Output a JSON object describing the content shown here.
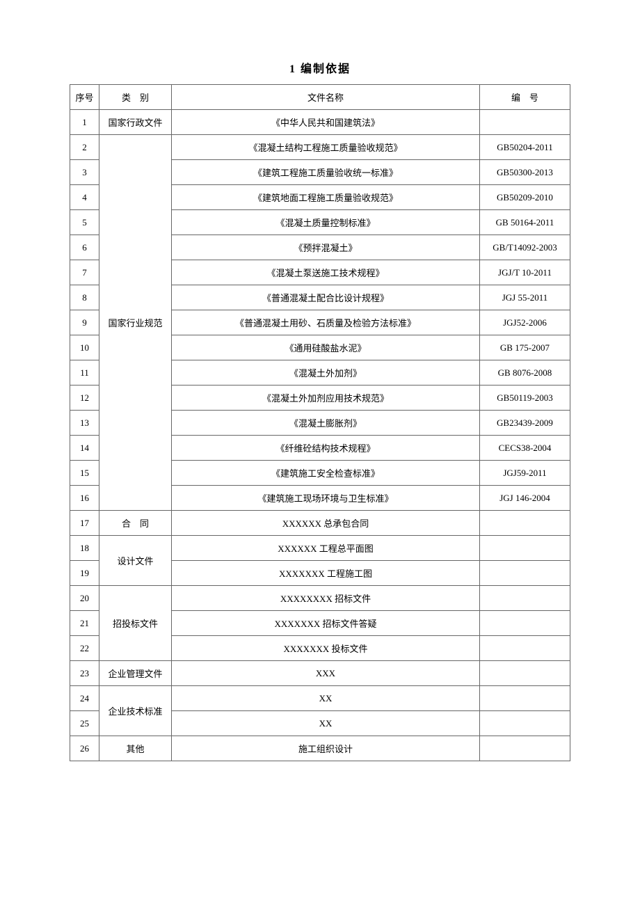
{
  "title": "1 编制依据",
  "headers": {
    "seq": "序号",
    "category": "类　别",
    "filename": "文件名称",
    "code": "编　号"
  },
  "categories": {
    "admin": "国家行政文件",
    "industry": "国家行业规范",
    "contract": "合　同",
    "design": "设计文件",
    "bidding": "招投标文件",
    "mgmt": "企业管理文件",
    "tech": "企业技术标准",
    "other": "其他"
  },
  "rows": [
    {
      "seq": "1",
      "name": "《中华人民共和国建筑法》",
      "code": ""
    },
    {
      "seq": "2",
      "name": "《混凝土结构工程施工质量验收规范》",
      "code": "GB50204-2011"
    },
    {
      "seq": "3",
      "name": "《建筑工程施工质量验收统一标准》",
      "code": "GB50300-2013"
    },
    {
      "seq": "4",
      "name": "《建筑地面工程施工质量验收规范》",
      "code": "GB50209-2010"
    },
    {
      "seq": "5",
      "name": "《混凝土质量控制标准》",
      "code": "GB 50164-2011"
    },
    {
      "seq": "6",
      "name": "《预拌混凝土》",
      "code": "GB/T14092-2003"
    },
    {
      "seq": "7",
      "name": "《混凝土泵送施工技术规程》",
      "code": "JGJ/T 10-2011"
    },
    {
      "seq": "8",
      "name": "《普通混凝土配合比设计规程》",
      "code": "JGJ 55-2011"
    },
    {
      "seq": "9",
      "name": "《普通混凝土用砂、石质量及检验方法标准》",
      "code": "JGJ52-2006"
    },
    {
      "seq": "10",
      "name": "《通用硅酸盐水泥》",
      "code": "GB 175-2007"
    },
    {
      "seq": "11",
      "name": "《混凝土外加剂》",
      "code": "GB 8076-2008"
    },
    {
      "seq": "12",
      "name": "《混凝土外加剂应用技术规范》",
      "code": "GB50119-2003"
    },
    {
      "seq": "13",
      "name": "《混凝土膨胀剂》",
      "code": "GB23439-2009"
    },
    {
      "seq": "14",
      "name": "《纤维砼结构技术规程》",
      "code": "CECS38-2004"
    },
    {
      "seq": "15",
      "name": "《建筑施工安全检查标准》",
      "code": "JGJ59-2011"
    },
    {
      "seq": "16",
      "name": "《建筑施工现场环境与卫生标准》",
      "code": "JGJ 146-2004"
    },
    {
      "seq": "17",
      "name": "XXXXXX 总承包合同",
      "code": ""
    },
    {
      "seq": "18",
      "name": "XXXXXX 工程总平面图",
      "code": ""
    },
    {
      "seq": "19",
      "name": "XXXXXXX 工程施工图",
      "code": ""
    },
    {
      "seq": "20",
      "name": "XXXXXXXX 招标文件",
      "code": ""
    },
    {
      "seq": "21",
      "name": "XXXXXXX 招标文件答疑",
      "code": ""
    },
    {
      "seq": "22",
      "name": "XXXXXXX 投标文件",
      "code": ""
    },
    {
      "seq": "23",
      "name": "XXX",
      "code": ""
    },
    {
      "seq": "24",
      "name": "XX",
      "code": ""
    },
    {
      "seq": "25",
      "name": "XX",
      "code": ""
    },
    {
      "seq": "26",
      "name": "施工组织设计",
      "code": ""
    }
  ]
}
